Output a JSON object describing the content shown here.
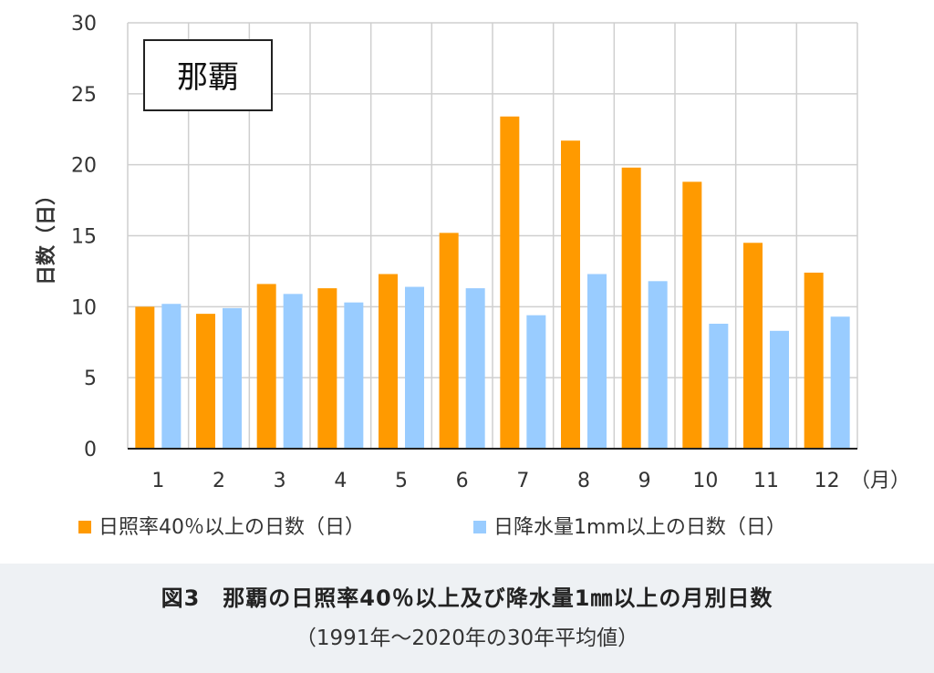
{
  "chart_data": {
    "type": "bar",
    "title": "那覇",
    "ylabel": "日数（日）",
    "xunit": "（月）",
    "ylim": [
      0,
      30
    ],
    "yticks": [
      0,
      5,
      10,
      15,
      20,
      25,
      30
    ],
    "grid": true,
    "legend_position": "bottom",
    "categories": [
      "1",
      "2",
      "3",
      "4",
      "5",
      "6",
      "7",
      "8",
      "9",
      "10",
      "11",
      "12"
    ],
    "series": [
      {
        "name": "日照率40％以上の日数（日）",
        "color": "#ff9a00",
        "values": [
          10.0,
          9.5,
          11.6,
          11.3,
          12.3,
          15.2,
          23.4,
          21.7,
          19.8,
          18.8,
          14.5,
          12.4
        ]
      },
      {
        "name": "日降水量1mm以上の日数（日）",
        "color": "#99ccff",
        "values": [
          10.2,
          9.9,
          10.9,
          10.3,
          11.4,
          11.3,
          9.4,
          12.3,
          11.8,
          8.8,
          8.3,
          9.3
        ]
      }
    ]
  },
  "caption": {
    "title": "図3　那覇の日照率40％以上及び降水量1㎜以上の月別日数",
    "subtitle": "（1991年～2020年の30年平均値）"
  }
}
